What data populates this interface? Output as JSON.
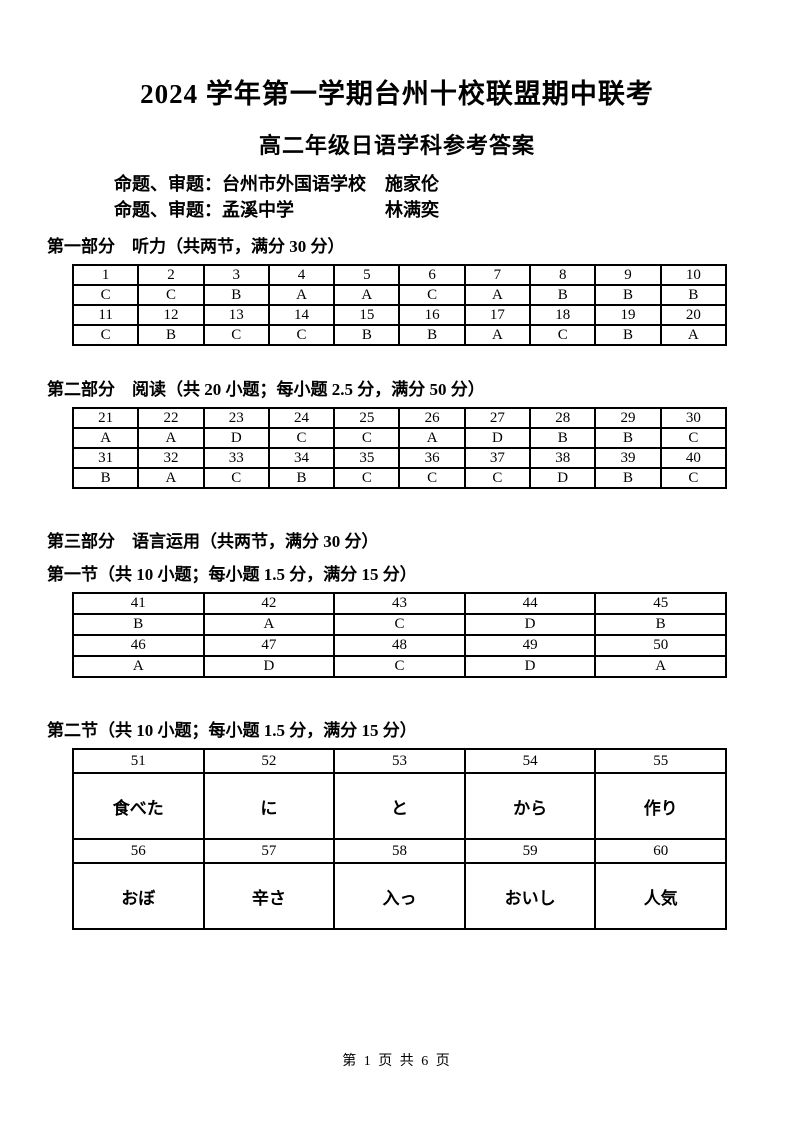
{
  "doc": {
    "title": "2024 学年第一学期台州十校联盟期中联考",
    "subtitle": "高二年级日语学科参考答案",
    "authors": [
      {
        "label": "命题、审题：",
        "org": "台州市外国语学校",
        "name": "施家伦"
      },
      {
        "label": "命题、审题：",
        "org": "孟溪中学",
        "name": "林满奕"
      }
    ],
    "footer": "第 1 页 共 6 页"
  },
  "sections": {
    "part1": {
      "heading": "第一部分　听力（共两节，满分 30 分）"
    },
    "part2": {
      "heading": "第二部分　阅读（共 20 小题；每小题 2.5 分，满分 50 分）"
    },
    "part3": {
      "heading": "第三部分　语言运用（共两节，满分 30 分）",
      "sub1": "第一节（共 10 小题；每小题 1.5 分，满分 15 分）",
      "sub2": "第二节（共 10 小题；每小题 1.5 分，满分 15 分）"
    }
  },
  "answer_tables": {
    "listening": {
      "rows": [
        [
          "1",
          "2",
          "3",
          "4",
          "5",
          "6",
          "7",
          "8",
          "9",
          "10"
        ],
        [
          "C",
          "C",
          "B",
          "A",
          "A",
          "C",
          "A",
          "B",
          "B",
          "B"
        ],
        [
          "11",
          "12",
          "13",
          "14",
          "15",
          "16",
          "17",
          "18",
          "19",
          "20"
        ],
        [
          "C",
          "B",
          "C",
          "C",
          "B",
          "B",
          "A",
          "C",
          "B",
          "A"
        ]
      ]
    },
    "reading": {
      "rows": [
        [
          "21",
          "22",
          "23",
          "24",
          "25",
          "26",
          "27",
          "28",
          "29",
          "30"
        ],
        [
          "A",
          "A",
          "D",
          "C",
          "C",
          "A",
          "D",
          "B",
          "B",
          "C"
        ],
        [
          "31",
          "32",
          "33",
          "34",
          "35",
          "36",
          "37",
          "38",
          "39",
          "40"
        ],
        [
          "B",
          "A",
          "C",
          "B",
          "C",
          "C",
          "C",
          "D",
          "B",
          "C"
        ]
      ]
    },
    "usage_section1": {
      "rows": [
        [
          "41",
          "42",
          "43",
          "44",
          "45"
        ],
        [
          "B",
          "A",
          "C",
          "D",
          "B"
        ],
        [
          "46",
          "47",
          "48",
          "49",
          "50"
        ],
        [
          "A",
          "D",
          "C",
          "D",
          "A"
        ]
      ]
    },
    "usage_section2": {
      "rows": [
        [
          "51",
          "52",
          "53",
          "54",
          "55"
        ],
        [
          "食べた",
          "に",
          "と",
          "から",
          "作り"
        ],
        [
          "56",
          "57",
          "58",
          "59",
          "60"
        ],
        [
          "おぼ",
          "辛さ",
          "入っ",
          "おいし",
          "人気"
        ]
      ]
    }
  }
}
